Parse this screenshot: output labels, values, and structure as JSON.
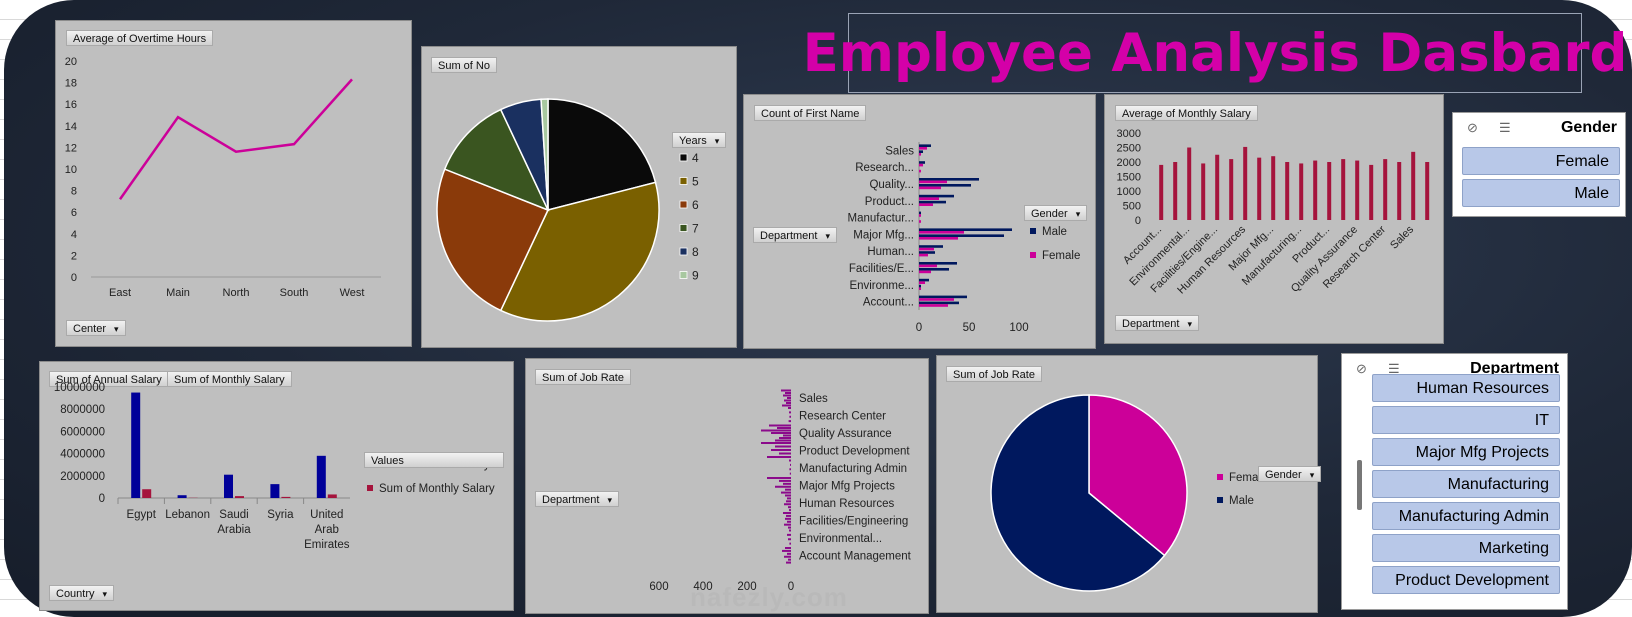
{
  "dashboard": {
    "title": "Employee Analysis Dasbard"
  },
  "colors": {
    "magenta": "#cc0099",
    "navy": "#00185e",
    "crimson": "#a5133c",
    "darkblue": "#000080",
    "purple": "#8b0a8b"
  },
  "charts": {
    "overtime": {
      "field_label": "Average of Overtime Hours",
      "filter_label": "Center",
      "chart_data": {
        "type": "line",
        "categories": [
          "East",
          "Main",
          "North",
          "South",
          "West"
        ],
        "values": [
          7.2,
          14.8,
          11.6,
          12.3,
          18.3
        ],
        "ylim": [
          0,
          20
        ],
        "yticks": [
          0,
          2,
          4,
          6,
          8,
          10,
          12,
          14,
          16,
          18,
          20
        ],
        "color": "#cc0099"
      }
    },
    "years_pie": {
      "field_label": "Sum of No",
      "legend_title": "Years",
      "chart_data": {
        "type": "pie",
        "labels": [
          "4",
          "5",
          "6",
          "7",
          "8",
          "9"
        ],
        "values": [
          21,
          36,
          24,
          12,
          6,
          1
        ],
        "colors": [
          "#0a0a0a",
          "#7a6000",
          "#8a3a0a",
          "#3a5520",
          "#1a3060",
          "#a8c8a0"
        ]
      }
    },
    "dept_count": {
      "field_label": "Count of First Name",
      "filter_label": "Department",
      "legend_title": "Gender",
      "legend": [
        "Male",
        "Female"
      ],
      "chart_data": {
        "type": "bar",
        "categories": [
          "Account...",
          "Environme...",
          "Facilities/E...",
          "Human...",
          "Major Mfg...",
          "Manufactur...",
          "Product...",
          "Quality...",
          "Research...",
          "Sales"
        ],
        "series": [
          {
            "name": "Male",
            "values": [
              48,
              10,
              38,
              24,
              93,
              2,
              35,
              60,
              6,
              12
            ]
          },
          {
            "name": "Female",
            "values": [
              35,
              6,
              18,
              15,
              45,
              2,
              20,
              28,
              4,
              8
            ]
          }
        ],
        "xticks": [
          "0",
          "50",
          "100"
        ],
        "xlim": [
          0,
          110
        ]
      }
    },
    "monthly_salary": {
      "field_label": "Average of Monthly Salary",
      "filter_label": "Department",
      "chart_data": {
        "type": "bar",
        "categories": [
          "Account...",
          "",
          "Environmental...",
          "",
          "Facilities/Engine...",
          "",
          "Human Resources",
          "",
          "Major Mfg...",
          "",
          "Manufacturing...",
          "",
          "Product...",
          "",
          "Quality Assurance",
          "",
          "Research Center",
          "",
          "Sales",
          ""
        ],
        "values": [
          1900,
          2000,
          2500,
          1950,
          2250,
          2100,
          2520,
          2150,
          2200,
          2000,
          1950,
          2050,
          2000,
          2100,
          2050,
          1900,
          2100,
          2000,
          2350,
          2000
        ],
        "ylim": [
          0,
          3000
        ],
        "yticks": [
          "0",
          "500",
          "1000",
          "1500",
          "2000",
          "2500",
          "3000"
        ]
      }
    },
    "country": {
      "field_labels": [
        "Sum of Annual Salary",
        "Sum of Monthly Salary"
      ],
      "filter_label": "Country",
      "legend_title": "Values",
      "legend": [
        "Sum of Annual Salary",
        "Sum of Monthly Salary"
      ],
      "chart_data": {
        "type": "bar",
        "categories": [
          "Egypt",
          "Lebanon",
          "Saudi Arabia",
          "Syria",
          "United Arab Emirates"
        ],
        "category_lines": [
          [
            "Egypt"
          ],
          [
            "Lebanon"
          ],
          [
            "Saudi",
            "Arabia"
          ],
          [
            "Syria"
          ],
          [
            "United",
            "Arab",
            "Emirates"
          ]
        ],
        "series": [
          {
            "name": "Sum of Annual Salary",
            "values": [
              9500000,
              250000,
              2100000,
              1250000,
              3800000
            ]
          },
          {
            "name": "Sum of Monthly Salary",
            "values": [
              790000,
              20000,
              170000,
              100000,
              320000
            ]
          }
        ],
        "ylim": [
          0,
          10000000
        ],
        "yticks": [
          "0",
          "2000000",
          "4000000",
          "6000000",
          "8000000",
          "10000000"
        ]
      }
    },
    "job_rate_bar": {
      "field_label": "Sum of Job Rate",
      "filter_label": "Department",
      "chart_data": {
        "type": "bar",
        "categories": [
          "Account Management",
          "Environmental...",
          "Facilities/Engineering",
          "Human Resources",
          "Major Mfg Projects",
          "Manufacturing Admin",
          "Product Development",
          "Quality Assurance",
          "Research Center",
          "Sales"
        ],
        "values": [
          [
            30,
            45,
            20,
            35,
            15,
            25
          ],
          [
            10,
            20,
            15,
            8
          ],
          [
            40,
            25,
            30,
            20,
            35,
            15
          ],
          [
            30,
            20,
            25,
            35,
            15,
            10
          ],
          [
            120,
            60,
            40,
            80,
            30,
            50
          ],
          [
            10,
            5,
            8,
            6
          ],
          [
            150,
            80,
            100,
            60,
            120
          ],
          [
            110,
            70,
            150,
            100,
            40,
            60,
            80
          ],
          [
            15,
            10,
            8,
            12
          ],
          [
            50,
            30,
            40,
            20,
            35,
            25,
            45
          ]
        ],
        "xticks": [
          "600",
          "400",
          "200",
          "0"
        ],
        "xlim": [
          0,
          700
        ]
      }
    },
    "job_rate_pie": {
      "field_label": "Sum of Job Rate",
      "legend_title": "Gender",
      "chart_data": {
        "type": "pie",
        "labels": [
          "Female",
          "Male"
        ],
        "values": [
          36,
          64
        ],
        "colors": [
          "#cc0099",
          "#00185e"
        ]
      }
    }
  },
  "slicers": {
    "gender": {
      "title": "Gender",
      "items": [
        "Female",
        "Male"
      ]
    },
    "department": {
      "title": "Department",
      "items": [
        "Human Resources",
        "IT",
        "Major Mfg Projects",
        "Manufacturing",
        "Manufacturing Admin",
        "Marketing",
        "Product Development"
      ]
    }
  },
  "watermark": "nafezly.com"
}
